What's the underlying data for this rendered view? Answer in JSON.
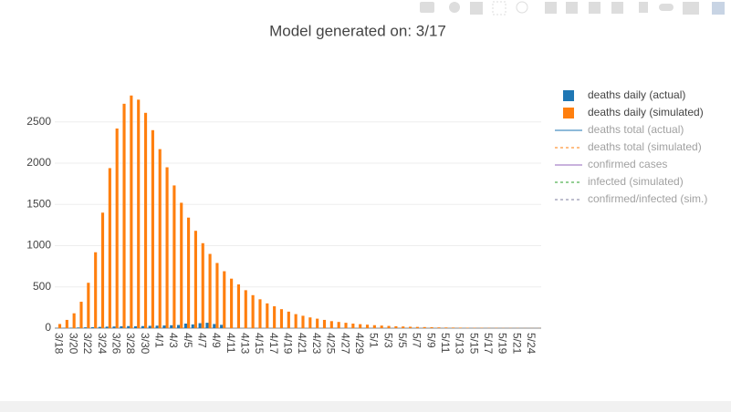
{
  "chart_data": {
    "type": "bar",
    "title": "Model generated on: 3/17",
    "categories": [
      "3/18",
      null,
      "3/20",
      null,
      "3/22",
      null,
      "3/24",
      null,
      "3/26",
      null,
      "3/28",
      null,
      "3/30",
      null,
      "4/1",
      null,
      "4/3",
      null,
      "4/5",
      null,
      "4/7",
      null,
      "4/9",
      null,
      "4/11",
      null,
      "4/13",
      null,
      "4/15",
      null,
      "4/17",
      null,
      "4/19",
      null,
      "4/21",
      null,
      "4/23",
      null,
      "4/25",
      null,
      "4/27",
      null,
      "4/29",
      null,
      "5/1",
      null,
      "5/3",
      null,
      "5/5",
      null,
      "5/7",
      null,
      "5/9",
      null,
      "5/11",
      null,
      "5/13",
      null,
      "5/15",
      null,
      "5/17",
      null,
      "5/19",
      null,
      "5/21",
      null,
      "5/24",
      null
    ],
    "series": [
      {
        "name": "deaths daily (actual)",
        "color": "#1f77b4",
        "values": [
          2,
          3,
          5,
          8,
          10,
          12,
          15,
          18,
          20,
          22,
          25,
          22,
          25,
          28,
          30,
          32,
          35,
          38,
          55,
          45,
          60,
          65,
          50,
          40,
          null,
          null,
          null,
          null,
          null,
          null,
          null,
          null,
          null,
          null,
          null,
          null,
          null,
          null,
          null,
          null,
          null,
          null,
          null,
          null,
          null,
          null,
          null,
          null,
          null,
          null,
          null,
          null,
          null,
          null,
          null,
          null,
          null,
          null,
          null,
          null,
          null,
          null,
          null,
          null,
          null,
          null,
          null,
          null
        ]
      },
      {
        "name": "deaths daily (simulated)",
        "color": "#ff7f0e",
        "values": [
          50,
          100,
          180,
          320,
          550,
          920,
          1400,
          1940,
          2420,
          2720,
          2820,
          2770,
          2610,
          2400,
          2170,
          1950,
          1730,
          1520,
          1340,
          1180,
          1030,
          900,
          790,
          690,
          600,
          530,
          460,
          400,
          350,
          300,
          265,
          230,
          200,
          170,
          150,
          130,
          115,
          100,
          85,
          75,
          65,
          55,
          48,
          42,
          36,
          31,
          27,
          23,
          20,
          17,
          15,
          13,
          11,
          9,
          8,
          7,
          6,
          5,
          4,
          4,
          3,
          3,
          2,
          2,
          2,
          1,
          1,
          1
        ]
      },
      {
        "name": "deaths total (actual)",
        "color": "#1f77b4",
        "line": "solid",
        "visible": "legendonly"
      },
      {
        "name": "deaths total (simulated)",
        "color": "#ff7f0e",
        "line": "dot",
        "visible": "legendonly"
      },
      {
        "name": "confirmed cases",
        "color": "#9467bd",
        "line": "solid",
        "visible": "legendonly"
      },
      {
        "name": "infected (simulated)",
        "color": "#2ca02c",
        "line": "dot",
        "visible": "legendonly"
      },
      {
        "name": "confirmed/infected (sim.)",
        "color": "#7f7f9f",
        "line": "dot",
        "visible": "legendonly"
      }
    ],
    "ylim": [
      0,
      3000
    ],
    "yticks": [
      0,
      500,
      1000,
      1500,
      2000,
      2500
    ],
    "grid": true
  }
}
